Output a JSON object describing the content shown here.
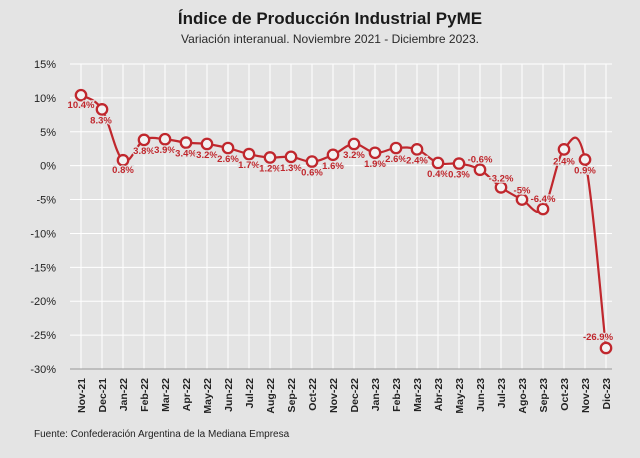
{
  "chart_data": {
    "type": "line",
    "title": "Índice de Producción Industrial PyME",
    "subtitle": "Variación interanual. Noviembre 2021 - Diciembre 2023.",
    "source": "Fuente: Confederación Argentina de la Mediana Empresa",
    "x": [
      "Nov-21",
      "Dec-21",
      "Jan-22",
      "Feb-22",
      "Mar-22",
      "Apr-22",
      "May-22",
      "Jun-22",
      "Jul-22",
      "Aug-22",
      "Sep-22",
      "Oct-22",
      "Nov-22",
      "Dec-22",
      "Jan-23",
      "Feb-23",
      "Mar-23",
      "Abr-23",
      "May-23",
      "Jun-23",
      "Jul-23",
      "Ago-23",
      "Sep-23",
      "Oct-23",
      "Nov-23",
      "Dic-23"
    ],
    "values": [
      10.4,
      8.3,
      0.8,
      3.8,
      3.9,
      3.4,
      3.2,
      2.6,
      1.7,
      1.2,
      1.3,
      0.6,
      1.6,
      3.2,
      1.9,
      2.6,
      2.4,
      0.4,
      0.3,
      -0.6,
      -3.2,
      -5,
      -6.4,
      2.4,
      0.9,
      -26.9
    ],
    "data_labels": [
      "10.4%",
      "8.3%",
      "0.8%",
      "3.8%",
      "3.9%",
      "3.4%",
      "3.2%",
      "2.6%",
      "1.7%",
      "1.2%",
      "1.3%",
      "0.6%",
      "1.6%",
      "3.2%",
      "1.9%",
      "2.6%",
      "2.4%",
      "0.4%",
      "0.3%",
      "-0.6%",
      "-3.2%",
      "-5%",
      "-6.4%",
      "2.4%",
      "0.9%",
      "-26.9%"
    ],
    "y_ticks": [
      "15%",
      "10%",
      "5%",
      "0%",
      "-5%",
      "-10%",
      "-15%",
      "-20%",
      "-25%",
      "-30%"
    ],
    "ylim": [
      -30,
      15
    ],
    "xlabel": "",
    "ylabel": "",
    "grid": true,
    "colors": {
      "line": "#c0272d",
      "marker_fill": "#f2f2f2",
      "grid": "#ffffff",
      "background": "#e4e4e4",
      "label": "#c0272d"
    }
  }
}
